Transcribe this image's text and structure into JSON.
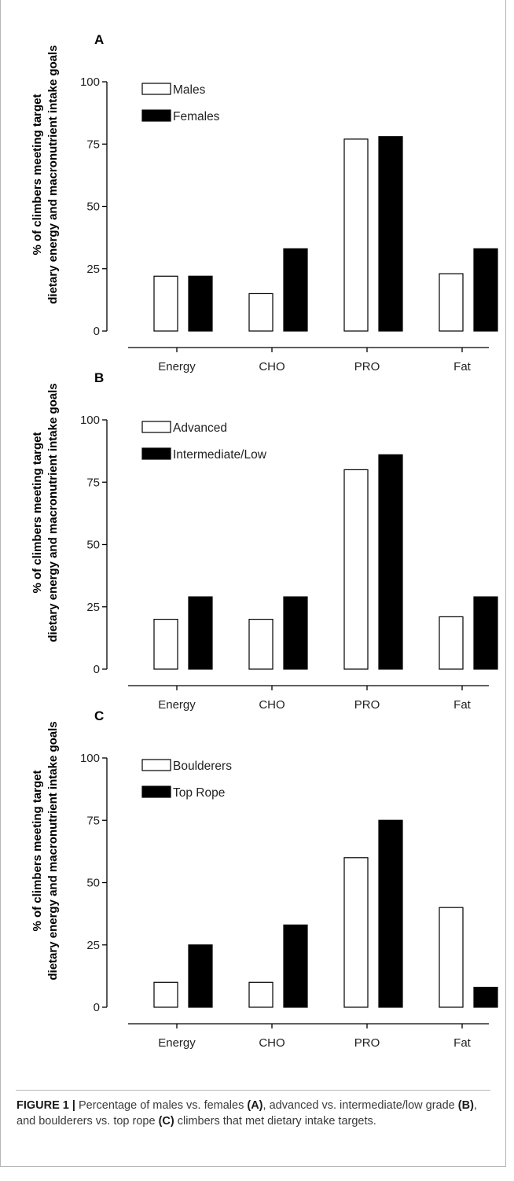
{
  "figure": {
    "ylabel_line1": "% of climbers meeting target",
    "ylabel_line2": "dietary energy and macronutrient intake goals"
  },
  "chart_data": [
    {
      "type": "bar",
      "panel_label": "A",
      "categories": [
        "Energy",
        "CHO",
        "PRO",
        "Fat"
      ],
      "series": [
        {
          "name": "Males",
          "values": [
            22,
            15,
            77,
            23
          ],
          "color": "#ffffff"
        },
        {
          "name": "Females",
          "values": [
            22,
            33,
            78,
            33
          ],
          "color": "#000000"
        }
      ],
      "ylim": [
        0,
        100
      ],
      "yticks": [
        0,
        25,
        50,
        75,
        100
      ],
      "legend": "top-left",
      "grid": false
    },
    {
      "type": "bar",
      "panel_label": "B",
      "categories": [
        "Energy",
        "CHO",
        "PRO",
        "Fat"
      ],
      "series": [
        {
          "name": "Advanced",
          "values": [
            20,
            20,
            80,
            21
          ],
          "color": "#ffffff"
        },
        {
          "name": "Intermediate/Low",
          "values": [
            29,
            29,
            86,
            29
          ],
          "color": "#000000"
        }
      ],
      "ylim": [
        0,
        100
      ],
      "yticks": [
        0,
        25,
        50,
        75,
        100
      ],
      "legend": "top-left",
      "grid": false
    },
    {
      "type": "bar",
      "panel_label": "C",
      "categories": [
        "Energy",
        "CHO",
        "PRO",
        "Fat"
      ],
      "series": [
        {
          "name": "Boulderers",
          "values": [
            10,
            10,
            60,
            40
          ],
          "color": "#ffffff"
        },
        {
          "name": "Top Rope",
          "values": [
            25,
            33,
            75,
            8
          ],
          "color": "#000000"
        }
      ],
      "ylim": [
        0,
        100
      ],
      "yticks": [
        0,
        25,
        50,
        75,
        100
      ],
      "legend": "top-left",
      "grid": false
    }
  ],
  "caption": {
    "figure_label": "FIGURE 1 |",
    "t1": " Percentage of males vs. females ",
    "a": "(A)",
    "t2": ", advanced vs. intermediate/low grade ",
    "b": "(B)",
    "t3": ", and boulderers vs. top rope ",
    "c": "(C)",
    "t4": " climbers that met dietary intake targets."
  }
}
